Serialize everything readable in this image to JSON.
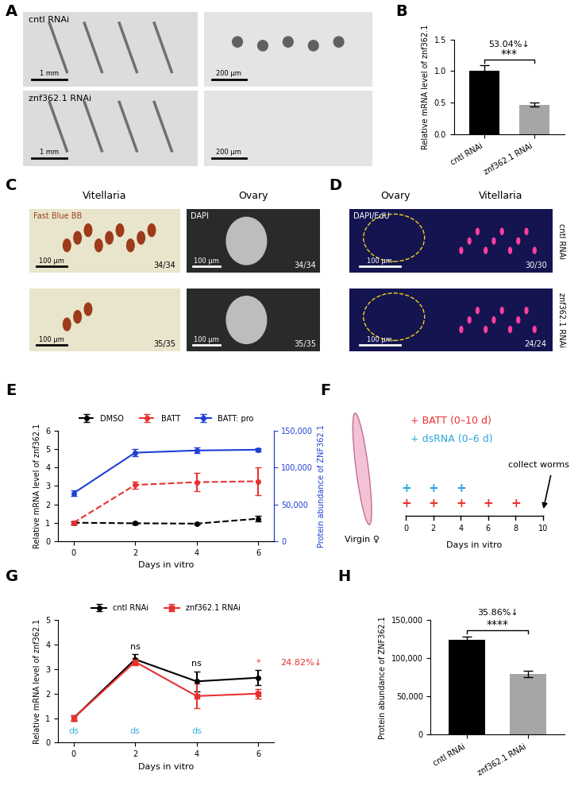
{
  "chart_data": [
    {
      "panel": "B",
      "type": "bar",
      "categories": [
        "cntl RNAi",
        "znf362.1 RNAi"
      ],
      "values": [
        1.0,
        0.47
      ],
      "errors": [
        0.09,
        0.03
      ],
      "colors": [
        "#000000",
        "#a6a6a6"
      ],
      "y_label": "Relative mRNA level of znf362.1",
      "ylim": [
        0,
        1.5
      ],
      "yticks": [
        {
          "value": 0,
          "label": "0.0"
        },
        {
          "value": 0.5,
          "label": "0.5"
        },
        {
          "value": 1,
          "label": "1.0"
        },
        {
          "value": 1.5,
          "label": "1.5"
        }
      ],
      "significance": "***",
      "change": "53.04%↓"
    },
    {
      "panel": "E",
      "type": "line",
      "x": [
        0,
        2,
        4,
        6
      ],
      "x_label": "Days in vitro",
      "y_label": "Relative mRNA level of znf362.1",
      "y2_label": "Protein abundance of ZNF362.1",
      "xlim": [
        -0.5,
        6.5
      ],
      "xticks": [
        0,
        2,
        4,
        6
      ],
      "ylim": [
        0,
        6
      ],
      "yticks": [
        0,
        1,
        2,
        3,
        4,
        5,
        6
      ],
      "y2lim": [
        0,
        150000
      ],
      "y2ticks": [
        0,
        {
          "value": 50000,
          "label": "50,000"
        },
        {
          "value": 100000,
          "label": "100,000"
        },
        {
          "value": 150000,
          "label": "150,000"
        }
      ],
      "legend": "lower center",
      "series": [
        {
          "name": "DMSO",
          "color": "#000000",
          "line_style": "dashed",
          "marker": "o",
          "values": [
            1.0,
            0.97,
            0.95,
            1.22
          ],
          "errors": [
            0.08,
            0.05,
            0.05,
            0.15
          ]
        },
        {
          "name": "BATT",
          "color": "#e8312f",
          "line_style": "dashed",
          "marker": "o",
          "values": [
            1.0,
            3.05,
            3.2,
            3.25
          ],
          "errors": [
            0.08,
            0.2,
            0.5,
            0.75
          ]
        },
        {
          "name": "BATT: pro",
          "color": "#1f3fd6",
          "line_style": "solid",
          "marker": "o",
          "axis": "y2",
          "values": [
            65000,
            120000,
            123000,
            124000
          ],
          "errors": [
            4000,
            5000,
            4000,
            2500
          ]
        }
      ]
    },
    {
      "panel": "G",
      "type": "line",
      "x": [
        0,
        2,
        4,
        6
      ],
      "x_label": "Days in vitro",
      "y_label": "Relative mRNA level of znf362.1",
      "xlim": [
        -0.5,
        6.5
      ],
      "xticks": [
        0,
        2,
        4,
        6
      ],
      "ylim": [
        0,
        5
      ],
      "yticks": [
        0,
        1,
        2,
        3,
        4,
        5
      ],
      "legend": "lower center",
      "series": [
        {
          "name": "cntl RNAi",
          "color": "#000000",
          "line_style": "solid",
          "marker": "o",
          "values": [
            1.0,
            3.4,
            2.5,
            2.65
          ],
          "errors": [
            0.12,
            0.2,
            0.4,
            0.3
          ]
        },
        {
          "name": "znf362.1 RNAi",
          "color": "#e8312f",
          "line_style": "solid",
          "marker": "s",
          "values": [
            1.0,
            3.3,
            1.9,
            2.0
          ],
          "errors": [
            0.1,
            0.15,
            0.5,
            0.2
          ]
        }
      ],
      "annotations": [
        {
          "text": "ns",
          "x": 2
        },
        {
          "text": "ns",
          "x": 4
        },
        {
          "text": "*",
          "x": 6
        }
      ],
      "change": "24.82%↓",
      "dsrna": {
        "text": "ds",
        "x": [
          0,
          2,
          4
        ]
      }
    },
    {
      "panel": "H",
      "type": "bar",
      "categories": [
        "cntl RNAi",
        "znf362.1 RNAi"
      ],
      "values": [
        124000,
        79500
      ],
      "errors": [
        4000,
        4000
      ],
      "colors": [
        "#000000",
        "#a6a6a6"
      ],
      "y_label": "Protein abundance of ZNF362.1",
      "ylim": [
        0,
        150000
      ],
      "yticks": [
        0,
        {
          "value": 50000,
          "label": "50,000"
        },
        {
          "value": 100000,
          "label": "100,000"
        },
        {
          "value": 150000,
          "label": "150,000"
        }
      ],
      "significance": "****",
      "change": "35.86%↓"
    }
  ],
  "images": [
    {
      "panel": "A",
      "rows": [
        "cntl RNAi",
        "znf362.1 RNAi"
      ],
      "scale_bars": [
        [
          "1 mm",
          "200 μm"
        ],
        [
          "1 mm",
          "200 μm"
        ]
      ]
    },
    {
      "panel": "C",
      "columns": [
        "Vitellaria",
        "Ovary"
      ],
      "stains": [
        "Fast Blue BB",
        "DAPI"
      ],
      "scale_bars": [
        [
          "100 μm",
          "100 μm"
        ],
        [
          "100 μm",
          "100 μm"
        ]
      ],
      "counts": [
        [
          "34/34",
          "34/34"
        ],
        [
          "35/35",
          "35/35"
        ]
      ]
    },
    {
      "panel": "D",
      "columns": [
        "Ovary",
        "Vitellaria"
      ],
      "stain": "DAPI/EdU",
      "rows": [
        "cntl RNAi",
        "znf362.1 RNAi"
      ],
      "scale_bars": [
        "100 μm",
        "100 μm"
      ],
      "counts": [
        "30/30",
        "24/24"
      ]
    }
  ],
  "diagram": {
    "panel": "F",
    "worm_label": "Virgin ♀",
    "treatments": [
      {
        "text": "+ BATT (0–10 d)",
        "mark": "+",
        "days": [
          0,
          2,
          4,
          6,
          8
        ]
      },
      {
        "text": "+ dsRNA (0–6 d)",
        "mark": "+",
        "days": [
          0,
          2,
          4
        ]
      }
    ],
    "timeline": {
      "ticks": [
        0,
        2,
        4,
        6,
        8,
        10
      ],
      "label": "Days in vitro"
    },
    "arrow": {
      "text": "collect worms",
      "day": 10
    }
  }
}
